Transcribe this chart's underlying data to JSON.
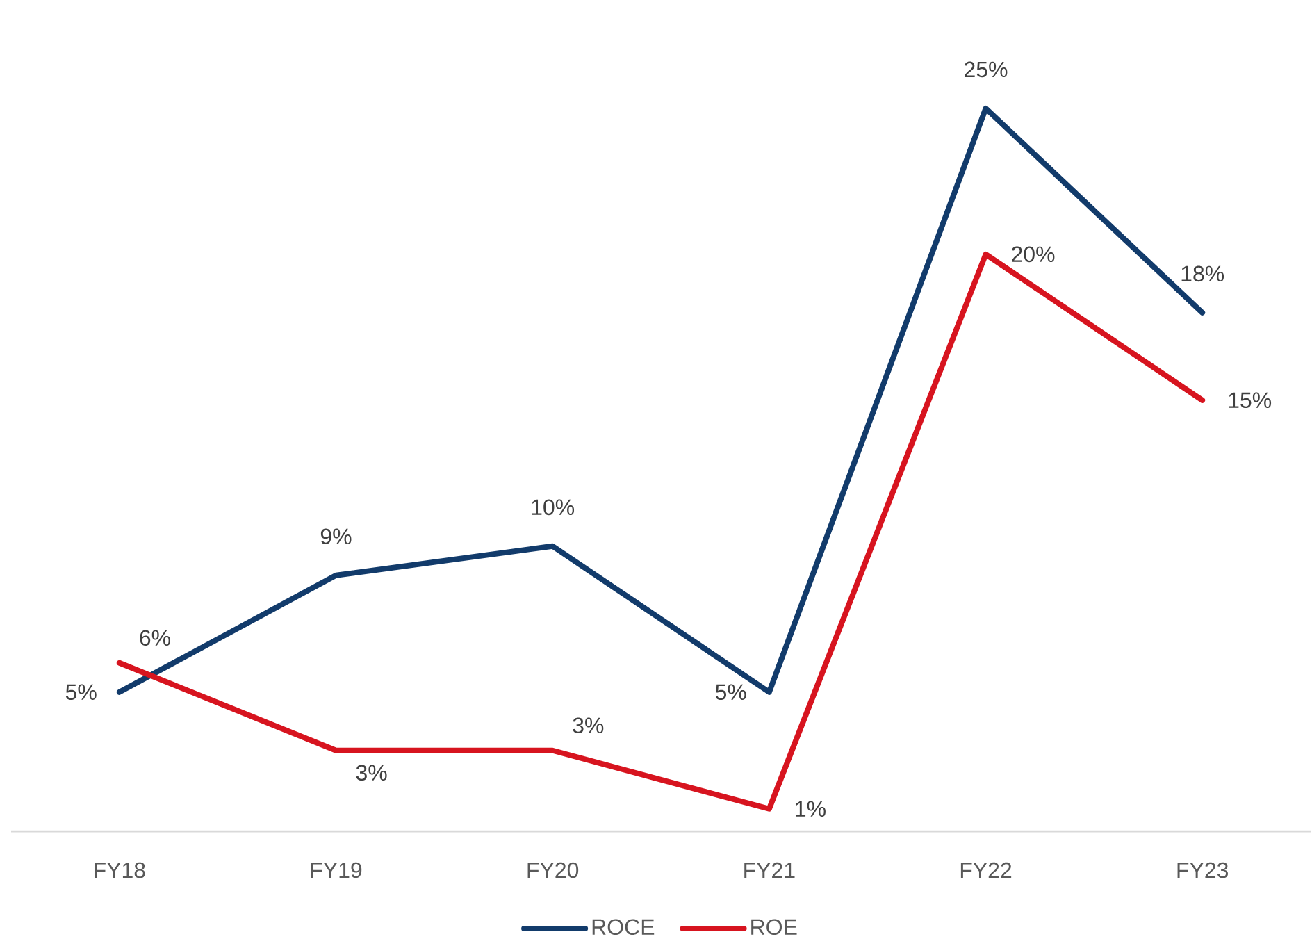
{
  "chart_data": {
    "type": "line",
    "categories": [
      "FY18",
      "FY19",
      "FY20",
      "FY21",
      "FY22",
      "FY23"
    ],
    "series": [
      {
        "name": "ROCE",
        "color": "#123b6b",
        "values": [
          5,
          9,
          10,
          5,
          25,
          18
        ],
        "value_labels": [
          "5%",
          "9%",
          "10%",
          "5%",
          "25%",
          "18%"
        ]
      },
      {
        "name": "ROE",
        "color": "#d7141f",
        "values": [
          6,
          3,
          3,
          1,
          20,
          15
        ],
        "value_labels": [
          "6%",
          "3%",
          "3%",
          "1%",
          "20%",
          "15%"
        ]
      }
    ],
    "tick_labels": "x",
    "legend": "bottom",
    "line_style": "solid"
  }
}
